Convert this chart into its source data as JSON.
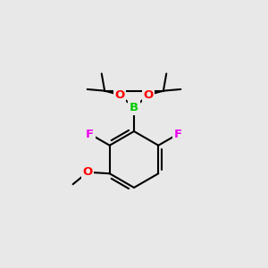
{
  "background_color": "#e8e8e8",
  "bond_color": "#000000",
  "atom_colors": {
    "B": "#00cc00",
    "O": "#ff0000",
    "F": "#ee00ee",
    "C": "#000000"
  },
  "figsize": [
    3.0,
    3.0
  ],
  "dpi": 100,
  "xlim": [
    0,
    10
  ],
  "ylim": [
    0,
    10
  ]
}
